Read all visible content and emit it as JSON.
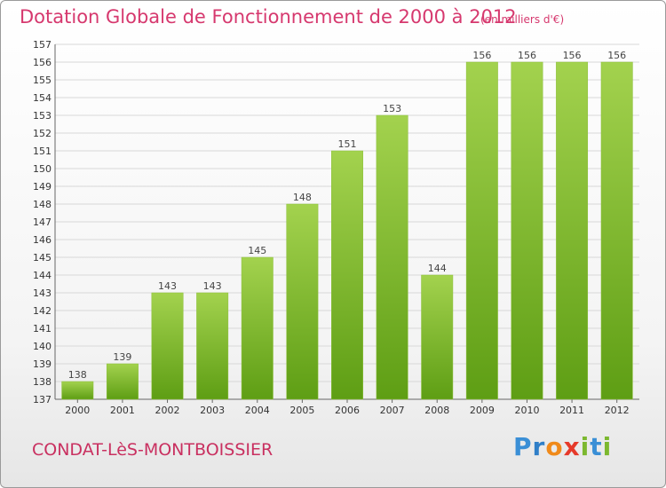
{
  "header": {
    "title": "Dotation Globale de Fonctionnement de 2000 à 2012",
    "subtitle": "(en milliers d'€)"
  },
  "footer": {
    "city": "CONDAT-LèS-MONTBOISSIER",
    "brand_letters": [
      "P",
      "r",
      "o",
      "x",
      "i",
      "t",
      "i"
    ]
  },
  "colors": {
    "title": "#d6386e",
    "bar_top": "#a3d24e",
    "bar_bottom": "#5e9e14",
    "grid": "#d8d8d8"
  },
  "chart_data": {
    "type": "bar",
    "categories": [
      "2000",
      "2001",
      "2002",
      "2003",
      "2004",
      "2005",
      "2006",
      "2007",
      "2008",
      "2009",
      "2010",
      "2011",
      "2012"
    ],
    "values": [
      138,
      139,
      143,
      143,
      145,
      148,
      151,
      153,
      144,
      156,
      156,
      156,
      156
    ],
    "ylim": [
      137,
      157
    ],
    "yticks": [
      137,
      138,
      139,
      140,
      141,
      142,
      143,
      144,
      145,
      146,
      147,
      148,
      149,
      150,
      151,
      152,
      153,
      154,
      155,
      156,
      157
    ],
    "grid": true,
    "data_labels": true
  }
}
